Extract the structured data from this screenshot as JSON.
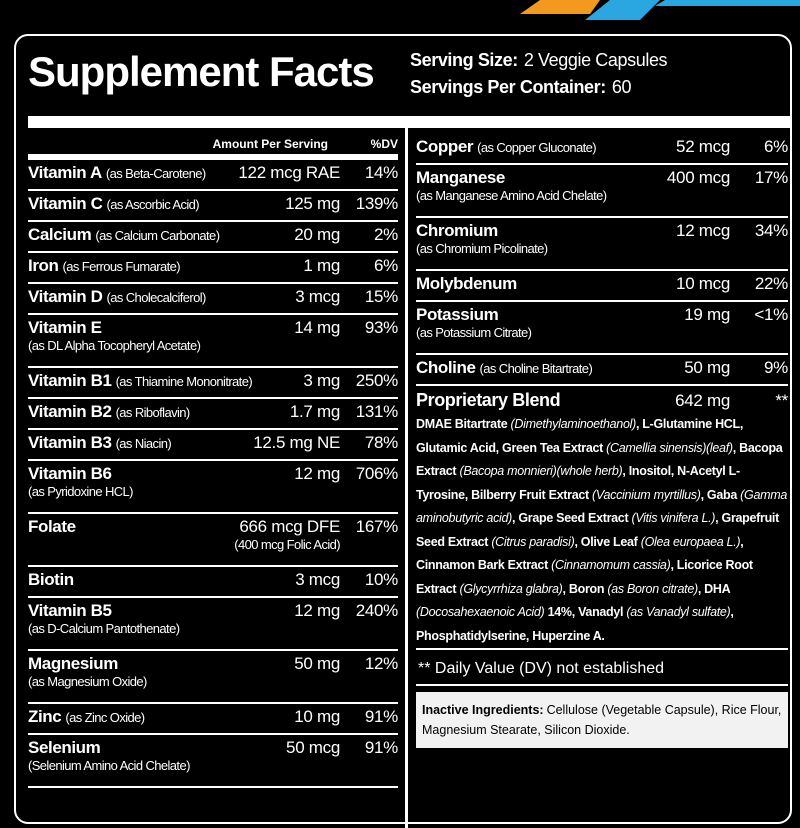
{
  "header": {
    "title": "Supplement Facts",
    "serving_size": {
      "label": "Serving Size:",
      "value": "2 Veggie Capsules"
    },
    "servings_per_container": {
      "label": "Servings Per Container:",
      "value": "60"
    }
  },
  "left": {
    "column_headers": [
      "Amount Per Serving",
      "%DV"
    ],
    "rows": [
      {
        "name": "Vitamin A",
        "source": "(as Beta-Carotene)",
        "amount": "122 mcg RAE",
        "dv": "14%"
      },
      {
        "name": "Vitamin C",
        "source": "(as Ascorbic Acid)",
        "amount": "125 mg",
        "dv": "139%"
      },
      {
        "name": "Calcium",
        "source": "(as Calcium Carbonate)",
        "amount": "20 mg",
        "dv": "2%"
      },
      {
        "name": "Iron",
        "source": "(as Ferrous Fumarate)",
        "amount": "1 mg",
        "dv": "6%"
      },
      {
        "name": "Vitamin D",
        "source": "(as Cholecalciferol)",
        "amount": "3 mcg",
        "dv": "15%"
      },
      {
        "name": "Vitamin E",
        "sub": "(as DL Alpha Tocopheryl Acetate)",
        "amount": "14 mg",
        "dv": "93%"
      },
      {
        "name": "Vitamin B1",
        "source": "(as Thiamine Mononitrate)",
        "amount": "3 mg",
        "dv": "250%"
      },
      {
        "name": "Vitamin B2",
        "source": "(as Riboflavin)",
        "amount": "1.7 mg",
        "dv": "131%"
      },
      {
        "name": "Vitamin B3",
        "source": "(as Niacin)",
        "amount": "12.5 mg NE",
        "dv": "78%"
      },
      {
        "name": "Vitamin B6",
        "sub": "(as Pyridoxine HCL)",
        "amount": "12 mg",
        "dv": "706%"
      },
      {
        "name": "Folate",
        "amount": "666 mcg DFE",
        "amount_note": "(400 mcg Folic Acid)",
        "dv": "167%"
      },
      {
        "name": "Biotin",
        "amount": "3 mcg",
        "dv": "10%"
      },
      {
        "name": "Vitamin B5",
        "sub": "(as D-Calcium Pantothenate)",
        "amount": "12 mg",
        "dv": "240%"
      },
      {
        "name": "Magnesium",
        "sub": "(as Magnesium Oxide)",
        "amount": "50 mg",
        "dv": "12%"
      },
      {
        "name": "Zinc",
        "source": "(as Zinc Oxide)",
        "amount": "10 mg",
        "dv": "91%"
      },
      {
        "name": "Selenium",
        "sub": "(Selenium Amino Acid Chelate)",
        "amount": "50 mcg",
        "dv": "91%"
      }
    ]
  },
  "right": {
    "rows": [
      {
        "name": "Copper",
        "source": "(as Copper Gluconate)",
        "amount": "52 mcg",
        "dv": "6%"
      },
      {
        "name": "Manganese",
        "sub": "(as Manganese Amino Acid Chelate)",
        "amount": "400 mcg",
        "dv": "17%"
      },
      {
        "name": "Chromium",
        "sub": "(as Chromium Picolinate)",
        "amount": "12 mcg",
        "dv": "34%"
      },
      {
        "name": "Molybdenum",
        "amount": "10 mcg",
        "dv": "22%"
      },
      {
        "name": "Potassium",
        "sub": "(as Potassium Citrate)",
        "amount": "19 mg",
        "dv": "<1%"
      },
      {
        "name": "Choline",
        "source": "(as Choline Bitartrate)",
        "amount": "50 mg",
        "dv": "9%"
      }
    ],
    "blend": {
      "name": "Proprietary Blend",
      "amount": "642 mg",
      "dv": "**",
      "ingredients": [
        {
          "text": "DMAE Bitartrate ",
          "italic": false
        },
        {
          "text": "(Dimethylaminoethanol)",
          "italic": true
        },
        {
          "text": ", L-Glutamine HCL, Glutamic Acid, Green Tea Extract ",
          "italic": false
        },
        {
          "text": "(Camellia sinensis)(leaf)",
          "italic": true
        },
        {
          "text": ", Bacopa Extract ",
          "italic": false
        },
        {
          "text": "(Bacopa monnieri)(whole herb)",
          "italic": true
        },
        {
          "text": ", Inositol, N-Acetyl L-Tyrosine, Bilberry Fruit Extract ",
          "italic": false
        },
        {
          "text": "(Vaccinium myrtillus)",
          "italic": true
        },
        {
          "text": ", Gaba ",
          "italic": false
        },
        {
          "text": "(Gamma aminobutyric acid)",
          "italic": true
        },
        {
          "text": ", Grape Seed Extract ",
          "italic": false
        },
        {
          "text": "(Vitis vinifera L.)",
          "italic": true
        },
        {
          "text": ", Grapefruit Seed Extract ",
          "italic": false
        },
        {
          "text": "(Citrus paradisi)",
          "italic": true
        },
        {
          "text": ", Olive Leaf ",
          "italic": false
        },
        {
          "text": "(Olea europaea L.)",
          "italic": true
        },
        {
          "text": ", Cinnamon Bark Extract ",
          "italic": false
        },
        {
          "text": "(Cinnamomum cassia)",
          "italic": true
        },
        {
          "text": ", Licorice Root Extract ",
          "italic": false
        },
        {
          "text": "(Glycyrrhiza glabra)",
          "italic": true
        },
        {
          "text": ", Boron ",
          "italic": false
        },
        {
          "text": "(as Boron citrate)",
          "italic": true
        },
        {
          "text": ", DHA ",
          "italic": false
        },
        {
          "text": "(Docosahexaenoic Acid)",
          "italic": true
        },
        {
          "text": " 14%, Vanadyl ",
          "italic": false
        },
        {
          "text": "(as Vanadyl sulfate)",
          "italic": true
        },
        {
          "text": ", Phosphatidylserine, Huperzine A.",
          "italic": false
        }
      ]
    },
    "footnote": "** Daily Value (DV) not established",
    "inactive": {
      "label": "Inactive Ingredients:",
      "text": "Cellulose (Vegetable Capsule), Rice Flour, Magnesium Stearate, Silicon Dioxide."
    }
  }
}
